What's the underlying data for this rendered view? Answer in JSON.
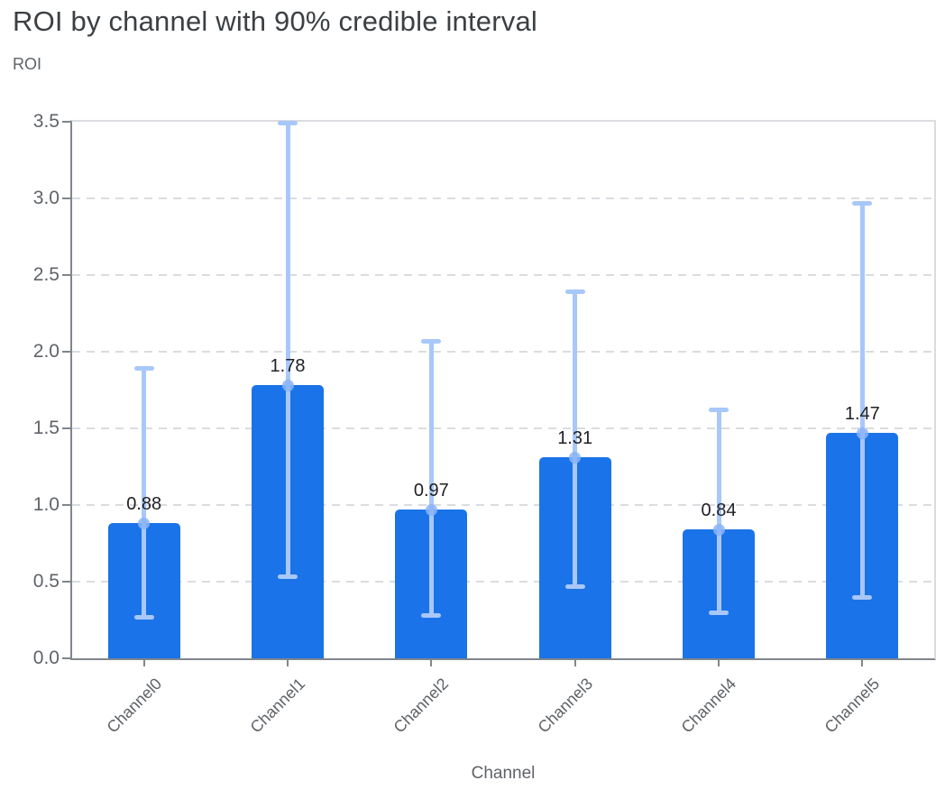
{
  "header": {
    "title": "ROI by channel with 90% credible interval",
    "y_axis_label": "ROI"
  },
  "chart_data": {
    "type": "bar",
    "title": "ROI by channel with 90% credible interval",
    "xlabel": "Channel",
    "ylabel": "ROI",
    "categories": [
      "Channel0",
      "Channel1",
      "Channel2",
      "Channel3",
      "Channel4",
      "Channel5"
    ],
    "values": [
      0.88,
      1.78,
      0.97,
      1.31,
      0.84,
      1.47
    ],
    "value_labels": [
      "0.88",
      "1.78",
      "0.97",
      "1.31",
      "0.84",
      "1.47"
    ],
    "error_low": [
      0.27,
      0.53,
      0.28,
      0.47,
      0.3,
      0.4
    ],
    "error_high": [
      1.89,
      3.49,
      2.07,
      2.39,
      1.62,
      2.97
    ],
    "error_type": "90% credible interval",
    "ylim": [
      0,
      3.5
    ],
    "ytick_labels": [
      "0.0",
      "0.5",
      "1.0",
      "1.5",
      "2.0",
      "2.5",
      "3.0",
      "3.5"
    ],
    "ytick_values": [
      0,
      0.5,
      1.0,
      1.5,
      2.0,
      2.5,
      3.0,
      3.5
    ],
    "grid": "dashed horizontal",
    "legend": "none",
    "colors": {
      "bar": "#1a73e8",
      "error_bar": "#a8c7fa",
      "error_marker": "#8ab4f8",
      "title_text": "#3c4043",
      "axis_text": "#5f6368",
      "value_text": "#202124",
      "gridline": "#dadce0",
      "axis_line": "#80868b",
      "background": "#ffffff"
    }
  }
}
